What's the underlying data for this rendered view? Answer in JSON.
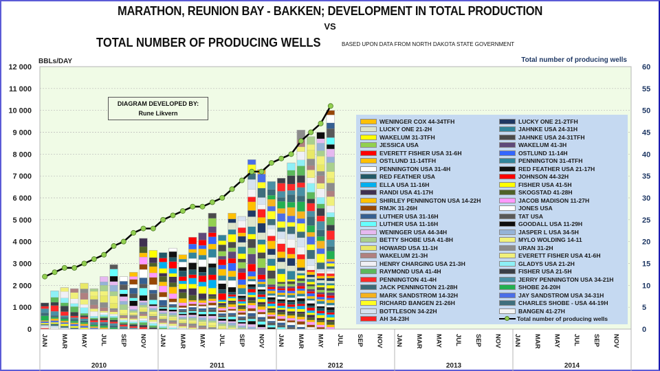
{
  "header": {
    "title_line1": "MARATHON, REUNION BAY - BAKKEN; DEVELOPMENT IN TOTAL PRODUCTION",
    "title_vs": "VS",
    "title_line2": "TOTAL NUMBER OF PRODUCING WELLS",
    "source_note": "BASED UPON DATA FROM NORTH DAKOTA STATE GOVERNMENT"
  },
  "developer_box": {
    "line1": "DIAGRAM DEVELOPED BY:",
    "line2": "Rune Likvern"
  },
  "chart_data": {
    "type": "bar",
    "stacked": true,
    "title": "MARATHON, REUNION BAY - BAKKEN; DEVELOPMENT IN TOTAL PRODUCTION VS TOTAL NUMBER OF PRODUCING WELLS",
    "ylabel": "BBLs/DAY",
    "y2label": "Total number of producing wells",
    "ylim": [
      0,
      12000
    ],
    "y2lim": [
      0,
      60
    ],
    "yticks": [
      "0",
      "1 000",
      "2 000",
      "3 000",
      "4 000",
      "5 000",
      "6 000",
      "7 000",
      "8 000",
      "9 000",
      "10 000",
      "11 000",
      "12 000"
    ],
    "y2ticks": [
      "0",
      "5",
      "10",
      "15",
      "20",
      "25",
      "30",
      "35",
      "40",
      "45",
      "50",
      "55",
      "60"
    ],
    "grid": true,
    "legend_position": "right",
    "month_tick_labels": [
      "JAN",
      "MAR",
      "MAY",
      "JUL",
      "SEP",
      "NOV"
    ],
    "years": [
      "2010",
      "2011",
      "2012",
      "2013",
      "2014"
    ],
    "x_months": [
      "2010-01",
      "2010-02",
      "2010-03",
      "2010-04",
      "2010-05",
      "2010-06",
      "2010-07",
      "2010-08",
      "2010-09",
      "2010-10",
      "2010-11",
      "2010-12",
      "2011-01",
      "2011-02",
      "2011-03",
      "2011-04",
      "2011-05",
      "2011-06",
      "2011-07",
      "2011-08",
      "2011-09",
      "2011-10",
      "2011-11",
      "2011-12",
      "2012-01",
      "2012-02",
      "2012-03",
      "2012-04",
      "2012-05",
      "2012-06"
    ],
    "total_production_bbl_per_day": [
      1200,
      1750,
      1900,
      1850,
      2100,
      1850,
      2400,
      2950,
      2400,
      2600,
      4150,
      3600,
      3500,
      3700,
      3400,
      4200,
      4400,
      5300,
      4300,
      5300,
      5150,
      7750,
      7300,
      6750,
      6900,
      7600,
      9100,
      8800,
      9000,
      10000
    ],
    "wells_series": {
      "name": "Total number of producing wells",
      "values": [
        12,
        13,
        14,
        14,
        15,
        16,
        17,
        19,
        20,
        22,
        23,
        23,
        25,
        26,
        27,
        28,
        28,
        29,
        30,
        32,
        34,
        36,
        36,
        38,
        39,
        40,
        43,
        45,
        47,
        51
      ]
    },
    "series_legend": [
      {
        "name": "WENINGER COX 44-34TFH",
        "color": "#ffc000"
      },
      {
        "name": "LUCKY ONE 21-2TFH",
        "color": "#1f3864"
      },
      {
        "name": "LUCKY ONE 21-2H",
        "color": "#dde5cc"
      },
      {
        "name": "JAHNKE USA 24-31H",
        "color": "#31849b"
      },
      {
        "name": "WAKELUM 31-3TFH",
        "color": "#ffff00"
      },
      {
        "name": "JAHNKE USA 24-31TFH",
        "color": "#4a4a4a"
      },
      {
        "name": "JESSICA USA",
        "color": "#92d050"
      },
      {
        "name": "WAKELUM 41-3H",
        "color": "#5f497a"
      },
      {
        "name": "EVERETT FISHER USA 31-6H",
        "color": "#ff0000"
      },
      {
        "name": "OSTLUND 11-14H",
        "color": "#3366ff"
      },
      {
        "name": "OSTLUND 11-14TFH",
        "color": "#ffc000"
      },
      {
        "name": "PENNINGTON 31-4TFH",
        "color": "#31859c"
      },
      {
        "name": "PENNINGTON USA 31-4H",
        "color": "#ffffff"
      },
      {
        "name": "RED FEATHER USA 21-17H",
        "color": "#111111"
      },
      {
        "name": "RED FEATHER USA",
        "color": "#215967"
      },
      {
        "name": "JOHNSON 44-32H",
        "color": "#ff0000"
      },
      {
        "name": "ELLA USA 11-16H",
        "color": "#00b0f0"
      },
      {
        "name": "FISHER USA 41-5H",
        "color": "#ffff00"
      },
      {
        "name": "RANDI USA 41-17H",
        "color": "#403151"
      },
      {
        "name": "SKOGSTAD 41-28H",
        "color": "#4f6228"
      },
      {
        "name": "SHIRLEY PENNINGTON USA 14-22H",
        "color": "#ffc000"
      },
      {
        "name": "JACOB MADISON 11-27H",
        "color": "#ff99ff"
      },
      {
        "name": "RMJK 31-26H",
        "color": "#974706"
      },
      {
        "name": "JONES USA",
        "color": "#ffffff"
      },
      {
        "name": "LUTHER USA 31-16H",
        "color": "#366092"
      },
      {
        "name": "TAT USA",
        "color": "#595959"
      },
      {
        "name": "LUTHER USA 11-16H",
        "color": "#66ffff"
      },
      {
        "name": "GOODALL USA 11-29H",
        "color": "#0d0d0d"
      },
      {
        "name": "WENINGER USA 44-34H",
        "color": "#e6b9f0"
      },
      {
        "name": "JASPER L USA 34-5H",
        "color": "#95b3d7"
      },
      {
        "name": "BETTY SHOBE USA 41-8H",
        "color": "#a9d08e"
      },
      {
        "name": "MYLO WOLDING 14-11",
        "color": "#f2f27a"
      },
      {
        "name": "HOWARD USA 11-1H",
        "color": "#e8e866"
      },
      {
        "name": "URAN 31-2H",
        "color": "#8c8c8c"
      },
      {
        "name": "WAKELUM 21-3H",
        "color": "#b08080"
      },
      {
        "name": "EVERETT FISHER USA 41-6H",
        "color": "#f0f07a"
      },
      {
        "name": "HENRY CHARGING USA 21-3H",
        "color": "#f0f0f6"
      },
      {
        "name": "GLADYS USA 21-2H",
        "color": "#8ef0f6"
      },
      {
        "name": "RAYMOND USA 41-4H",
        "color": "#5cb85c"
      },
      {
        "name": "FISHER USA 21-5H",
        "color": "#3a3f48"
      },
      {
        "name": "PENNINGTON 41-4H",
        "color": "#ff2a2a"
      },
      {
        "name": "JERRY PENNINGTON USA 34-21H",
        "color": "#4a90a4"
      },
      {
        "name": "JACK PENNINGTON 21-28H",
        "color": "#3b6a78"
      },
      {
        "name": "SHOBE 24-20H",
        "color": "#22b050"
      },
      {
        "name": "MARK SANDSTROM 14-32H",
        "color": "#f5b21e"
      },
      {
        "name": "JAY SANDSTROM USA 34-31H",
        "color": "#4a6ee8"
      },
      {
        "name": "RICHARD BANGEN 21-26H",
        "color": "#ffff22"
      },
      {
        "name": "CHARLES SHOBE - USA 44-19H",
        "color": "#3e6e7c"
      },
      {
        "name": "BOTTLESON 34-22H",
        "color": "#d6e2f0"
      },
      {
        "name": "BANGEN 41-27H",
        "color": "#f4f4f4"
      },
      {
        "name": "AH 34-23H",
        "color": "#ff2020"
      }
    ]
  },
  "colors": {
    "plot_background": "#f0fbe6",
    "legend_background": "#c5d9f1",
    "wells_line": "#000000",
    "wells_marker": "#92d050",
    "right_axis_text": "#1f3864",
    "frame_border": "#5b5bd6"
  }
}
